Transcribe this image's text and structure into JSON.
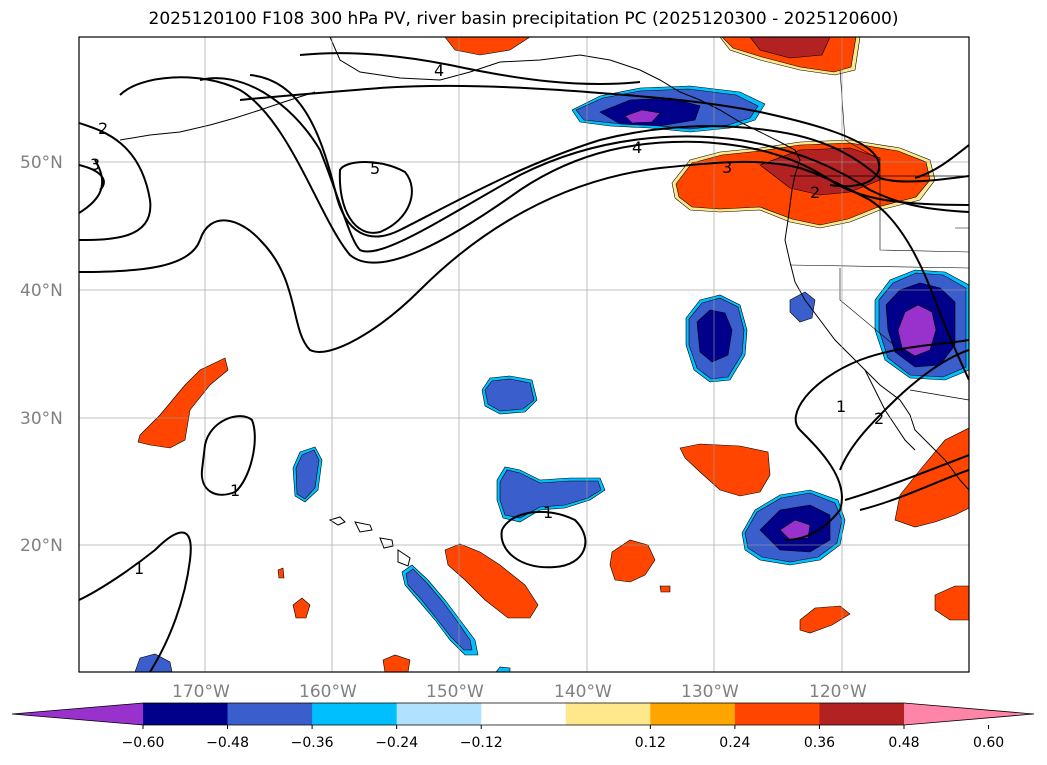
{
  "title": "2025120100 F108 300 hPa PV, river basin precipitation PC (2025120300 - 2025120600)",
  "map": {
    "lat_labels": [
      "50°N",
      "40°N",
      "30°N",
      "20°N"
    ],
    "lon_labels": [
      "170°W",
      "160°W",
      "150°W",
      "140°W",
      "130°W",
      "120°W"
    ],
    "pv_contour_labels": [
      "2",
      "3",
      "4",
      "5",
      "4",
      "3",
      "2",
      "1",
      "2",
      "1",
      "1",
      "1"
    ]
  },
  "colorbar": {
    "ticks": [
      "−0.60",
      "−0.48",
      "−0.36",
      "−0.24",
      "−0.12",
      "0.12",
      "0.24",
      "0.36",
      "0.48",
      "0.60"
    ],
    "colors": [
      "#9932CC",
      "#00008B",
      "#3A5FCD",
      "#00BFFF",
      "#B0E2FF",
      "#FFFFFF",
      "#FFE88C",
      "#FFA500",
      "#FF4500",
      "#B22222",
      "#FF85A8"
    ]
  }
}
